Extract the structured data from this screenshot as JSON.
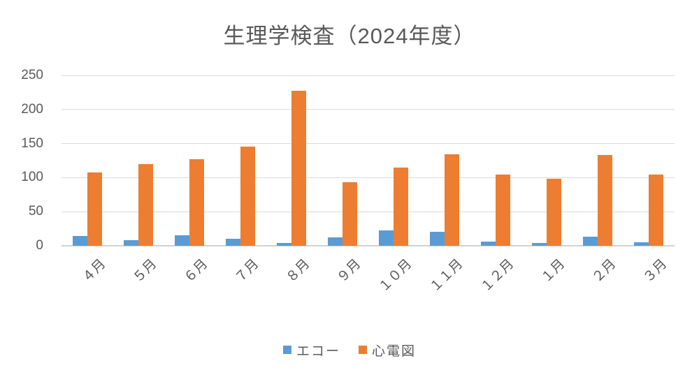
{
  "chart_data": {
    "type": "bar",
    "title": "生理学検査（2024年度）",
    "categories": [
      "４月",
      "５月",
      "６月",
      "７月",
      "８月",
      "９月",
      "１０月",
      "１１月",
      "１２月",
      "１月",
      "２月",
      "３月"
    ],
    "series": [
      {
        "name": "エコー",
        "color": "#5B9BD5",
        "values": [
          14,
          8,
          15,
          10,
          4,
          12,
          23,
          21,
          6,
          4,
          13,
          5
        ]
      },
      {
        "name": "心電図",
        "color": "#ED7D31",
        "values": [
          108,
          120,
          127,
          145,
          227,
          93,
          115,
          134,
          104,
          98,
          133,
          105
        ]
      }
    ],
    "ylim": [
      0,
      250
    ],
    "ytick_interval": 50,
    "yticks": [
      "0",
      "50",
      "100",
      "150",
      "200",
      "250"
    ],
    "xlabel": "",
    "ylabel": "",
    "grid": "horizontal",
    "legend_position": "bottom",
    "x_label_rotation": -45
  },
  "colors": {
    "background": "#FFFFFF",
    "grid": "#D9D9D9",
    "axis_text": "#595959",
    "title_text": "#595959"
  }
}
